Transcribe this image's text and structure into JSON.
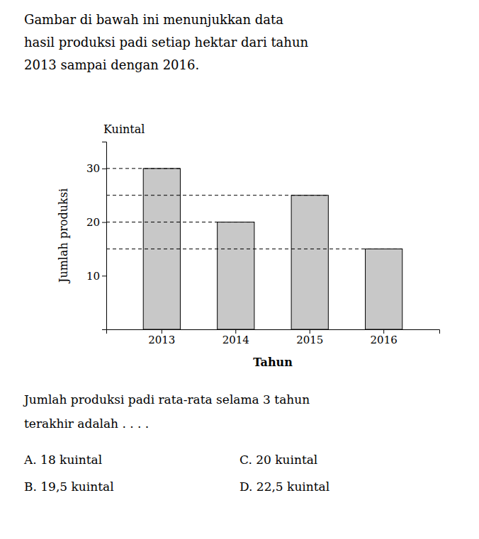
{
  "chart_data": {
    "type": "bar",
    "title": [
      "Gambar di bawah ini menunjukkan data",
      "hasil produksi padi setiap hektar dari tahun",
      "2013 sampai dengan 2016."
    ],
    "categories": [
      "2013",
      "2014",
      "2015",
      "2016"
    ],
    "values": [
      30,
      20,
      25,
      15
    ],
    "color": "#c8c8c8",
    "ylim": [
      0,
      35
    ],
    "yticks": [
      10,
      20,
      30
    ],
    "ylabel": "Jumlah produksi",
    "xlabel": "Tahun",
    "y_unit_label": "Kuintal",
    "question": [
      "Jumlah produksi padi rata-rata selama 3 tahun",
      "terakhir adalah . . . ."
    ],
    "options": [
      "A.    18 kuintal",
      "B.    19,5 kuintal",
      "C.    20 kuintal",
      "D.    22,5 kuintal"
    ]
  }
}
